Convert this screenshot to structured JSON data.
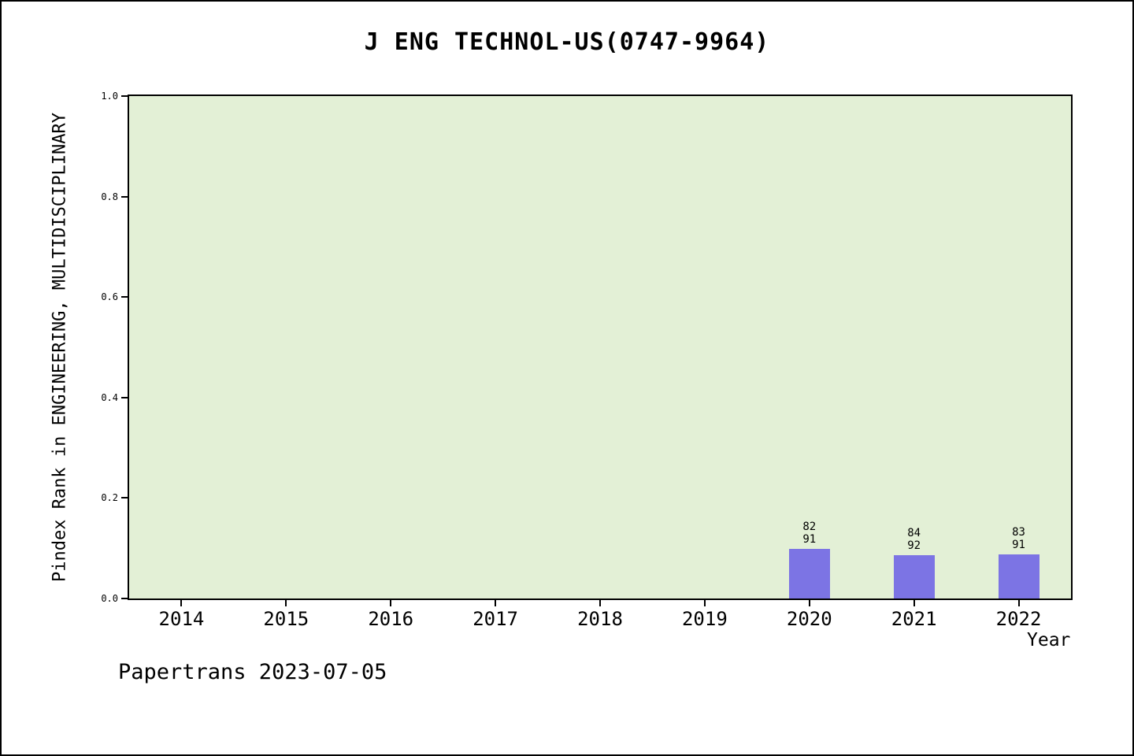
{
  "footer": {
    "text": "Papertrans 2023-07-05"
  },
  "chart_data": {
    "type": "bar",
    "title": "J ENG TECHNOL-US(0747-9964)",
    "xlabel": "Year",
    "ylabel": "Pindex Rank in ENGINEERING, MULTIDISCIPLINARY",
    "categories": [
      "2014",
      "2015",
      "2016",
      "2017",
      "2018",
      "2019",
      "2020",
      "2021",
      "2022"
    ],
    "values": [
      0,
      0,
      0,
      0,
      0,
      0,
      0.099,
      0.087,
      0.088
    ],
    "bar_annotations": [
      null,
      null,
      null,
      null,
      null,
      null,
      [
        "82",
        "91"
      ],
      [
        "84",
        "92"
      ],
      [
        "83",
        "91"
      ]
    ],
    "ylim": [
      0,
      1
    ],
    "yticks": [
      0.0,
      0.2,
      0.4,
      0.6,
      0.8,
      1.0
    ],
    "grid": false,
    "legend": null,
    "colors": {
      "bar": "#7c74e4",
      "plot_background": "#e3f0d6",
      "axis": "#000000",
      "page_background": "#ffffff"
    }
  }
}
